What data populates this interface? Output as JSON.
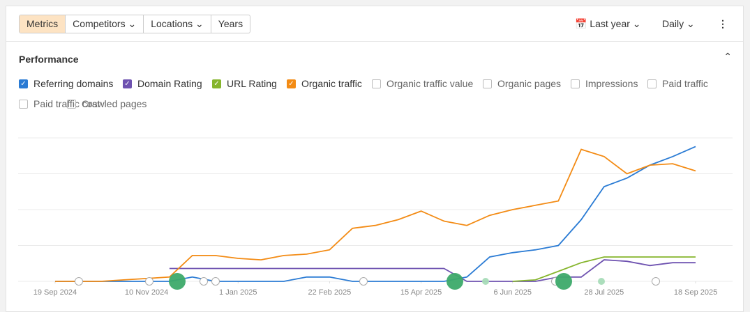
{
  "toolbar": {
    "tabs": [
      "Metrics",
      "Competitors",
      "Locations",
      "Years"
    ],
    "period": "Last year",
    "interval": "Daily"
  },
  "section": {
    "title": "Performance",
    "inactive_metrics": [
      "Organic traffic value",
      "Organic pages",
      "Impressions",
      "Paid traffic",
      "Paid traffic cost",
      "Crawled pages"
    ]
  },
  "chart_data": {
    "type": "line",
    "grid": true,
    "x": [
      "2024-09-19",
      "2024-10-02",
      "2024-10-15",
      "2024-10-28",
      "2024-11-10",
      "2024-11-23",
      "2024-12-06",
      "2024-12-19",
      "2025-01-01",
      "2025-01-14",
      "2025-01-27",
      "2025-02-09",
      "2025-02-22",
      "2025-03-07",
      "2025-03-20",
      "2025-04-02",
      "2025-04-15",
      "2025-04-28",
      "2025-05-11",
      "2025-05-24",
      "2025-06-06",
      "2025-06-19",
      "2025-07-02",
      "2025-07-15",
      "2025-07-28",
      "2025-08-10",
      "2025-08-23",
      "2025-09-05",
      "2025-09-18"
    ],
    "xlim": [
      "2024-08-29",
      "2025-10-09"
    ],
    "xticks": [
      {
        "value": "2024-09-19",
        "label": "19 Sep 2024"
      },
      {
        "value": "2024-11-10",
        "label": "10 Nov 2024"
      },
      {
        "value": "2025-01-01",
        "label": "1 Jan 2025"
      },
      {
        "value": "2025-02-22",
        "label": "22 Feb 2025"
      },
      {
        "value": "2025-04-15",
        "label": "15 Apr 2025"
      },
      {
        "value": "2025-06-06",
        "label": "6 Jun 2025"
      },
      {
        "value": "2025-07-28",
        "label": "28 Jul 2025"
      },
      {
        "value": "2025-09-18",
        "label": "18 Sep 2025"
      }
    ],
    "ylim": [
      0,
      100
    ],
    "yticks": [
      0,
      25,
      50,
      75,
      100
    ],
    "series": [
      {
        "name": "Referring domains",
        "color": "#2a7bd4",
        "values": [
          0,
          0,
          0,
          0,
          0,
          0,
          3,
          0,
          0,
          0,
          0,
          3,
          3,
          0,
          0,
          0,
          0,
          0,
          3,
          17,
          20,
          22,
          25,
          43,
          66,
          72,
          81,
          87,
          94
        ]
      },
      {
        "name": "Domain Rating",
        "color": "#6e52b0",
        "values": [
          null,
          null,
          null,
          null,
          null,
          9,
          9,
          9,
          9,
          9,
          9,
          9,
          9,
          9,
          9,
          9,
          9,
          9,
          0,
          0,
          0,
          0,
          3,
          3,
          15,
          14,
          11,
          13,
          13
        ]
      },
      {
        "name": "URL Rating",
        "color": "#86b52d",
        "values": [
          null,
          null,
          null,
          null,
          null,
          null,
          null,
          null,
          null,
          null,
          null,
          null,
          null,
          null,
          null,
          null,
          null,
          null,
          null,
          null,
          0,
          1,
          7,
          13,
          17,
          17,
          17,
          17,
          17
        ]
      },
      {
        "name": "Organic traffic",
        "color": "#f38b14",
        "values": [
          0,
          0,
          0,
          1,
          2,
          3,
          18,
          18,
          16,
          15,
          18,
          19,
          22,
          37,
          39,
          43,
          49,
          42,
          39,
          46,
          50,
          53,
          56,
          92,
          87,
          75,
          81,
          82,
          77
        ]
      }
    ]
  }
}
